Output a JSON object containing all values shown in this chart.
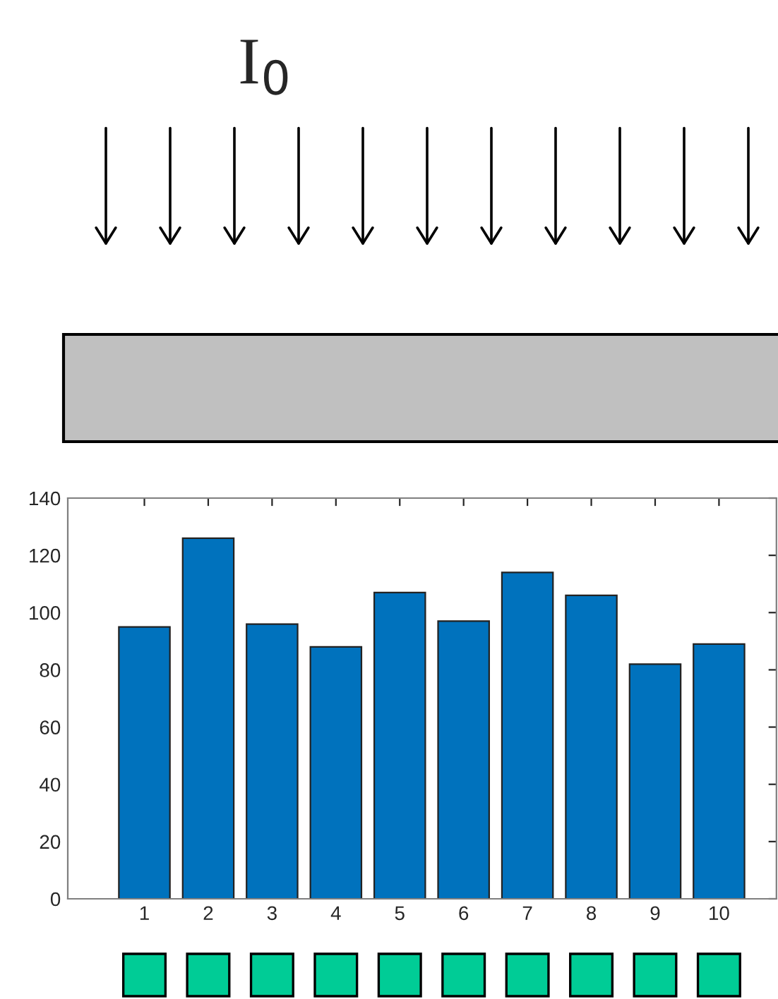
{
  "chart_data": {
    "type": "bar",
    "categories": [
      "1",
      "2",
      "3",
      "4",
      "5",
      "6",
      "7",
      "8",
      "9",
      "10"
    ],
    "values": [
      95,
      126,
      96,
      88,
      107,
      97,
      114,
      106,
      82,
      89
    ],
    "color": "#0072bd",
    "ylim": [
      0,
      140
    ],
    "yticks": [
      0,
      20,
      40,
      60,
      80,
      100,
      120,
      140
    ],
    "grid": false,
    "annotations": [
      "I$_{0}$"
    ]
  }
}
